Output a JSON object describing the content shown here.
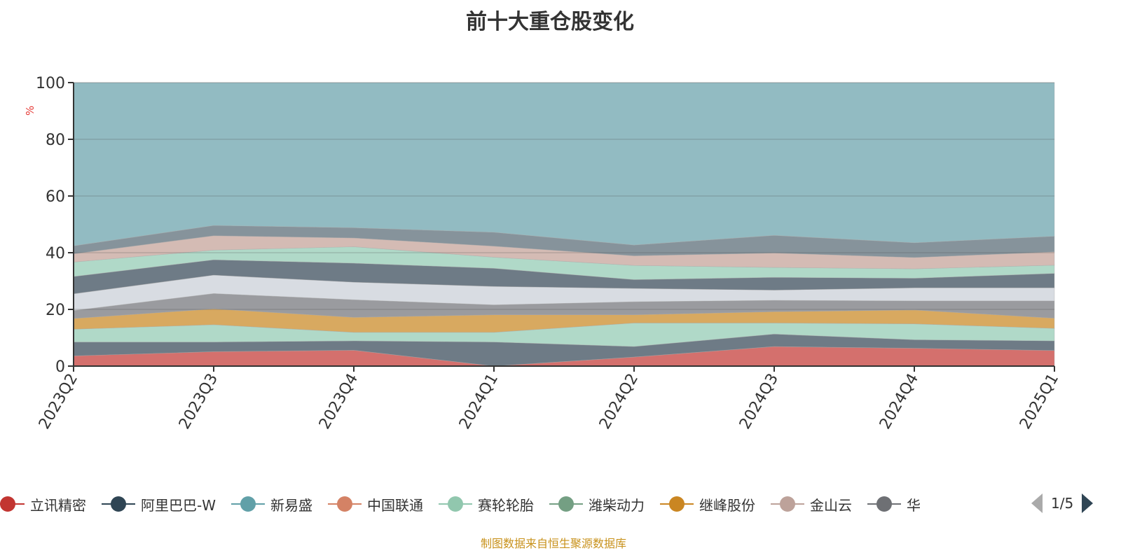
{
  "chart_data": {
    "type": "area",
    "stacked": true,
    "title": "前十大重仓股变化",
    "ylabel": "%",
    "xlabel": "",
    "ylim": [
      0,
      100
    ],
    "yticks": [
      "0",
      "20",
      "40",
      "60",
      "80",
      "100"
    ],
    "categories": [
      "2023Q2",
      "2023Q3",
      "2023Q4",
      "2024Q1",
      "2024Q2",
      "2024Q3",
      "2024Q4",
      "2025Q1"
    ],
    "grid": true,
    "series": [
      {
        "name": "",
        "color": "#d4706d",
        "values": [
          3.6,
          5.1,
          5.6,
          0,
          3.2,
          6.9,
          6.3,
          5.5
        ]
      },
      {
        "name": "",
        "color": "#6e7b86",
        "values": [
          4.9,
          3.4,
          3.3,
          8.5,
          3.7,
          4.4,
          3.0,
          3.4
        ]
      },
      {
        "name": "",
        "color": "#b0d9c8",
        "values": [
          4.5,
          6.1,
          3.0,
          3.4,
          8.3,
          3.9,
          5.6,
          4.4
        ]
      },
      {
        "name": "",
        "color": "#d8a960",
        "values": [
          3.8,
          5.6,
          5.3,
          6.2,
          2.9,
          4.0,
          4.9,
          3.6
        ]
      },
      {
        "name": "",
        "color": "#9a9b9f",
        "values": [
          2.8,
          5.4,
          6.2,
          3.5,
          4.6,
          4.0,
          3.2,
          6.1
        ]
      },
      {
        "name": "",
        "color": "#d8dce2",
        "values": [
          5.9,
          6.5,
          6.2,
          6.5,
          4.7,
          3.6,
          4.6,
          4.6
        ]
      },
      {
        "name": "",
        "color": "#6e7b86",
        "values": [
          6.1,
          5.4,
          6.7,
          6.4,
          3.1,
          4.5,
          3.4,
          5.1
        ]
      },
      {
        "name": "",
        "color": "#b0d9c8",
        "values": [
          5.1,
          3.4,
          5.8,
          3.9,
          5.0,
          3.5,
          3.3,
          2.9
        ]
      },
      {
        "name": "",
        "color": "#d4bbb4",
        "values": [
          2.9,
          5.1,
          3.1,
          3.9,
          3.4,
          5.1,
          4.0,
          4.7
        ]
      },
      {
        "name": "",
        "color": "#86939b",
        "values": [
          2.8,
          3.6,
          3.6,
          4.9,
          3.8,
          6.2,
          5.2,
          5.5
        ]
      },
      {
        "name": "",
        "color": "#92bbc2",
        "values": [
          57.6,
          50.4,
          51.2,
          52.8,
          57.3,
          53.9,
          56.5,
          54.2
        ]
      }
    ],
    "legend": {
      "position": "bottom",
      "page": "1/5",
      "items": [
        {
          "name": "立讯精密",
          "color": "#c23531"
        },
        {
          "name": "阿里巴巴-W",
          "color": "#2f4554"
        },
        {
          "name": "新易盛",
          "color": "#61a0a8"
        },
        {
          "name": "中国联通",
          "color": "#d48265"
        },
        {
          "name": "赛轮轮胎",
          "color": "#91c7ae"
        },
        {
          "name": "潍柴动力",
          "color": "#749f83"
        },
        {
          "name": "继峰股份",
          "color": "#ca8622"
        },
        {
          "name": "金山云",
          "color": "#bda29a"
        },
        {
          "name": "华",
          "color": "#6e7074"
        }
      ]
    }
  },
  "source": "制图数据来自恒生聚源数据库"
}
